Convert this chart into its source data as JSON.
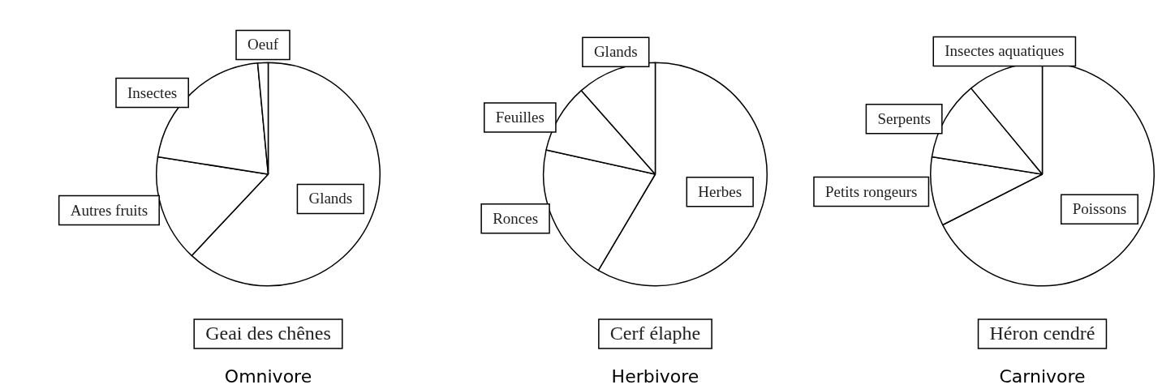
{
  "chart_data": [
    {
      "type": "pie",
      "title": "Geai des chênes",
      "subtitle": "Omnivore",
      "categories": [
        "Glands",
        "Autres fruits",
        "Insectes",
        "Oeuf"
      ],
      "values": [
        62,
        15.5,
        21,
        1.5
      ],
      "colors": [
        "#ffffff",
        "#ffffff",
        "#ffffff",
        "#ffffff"
      ]
    },
    {
      "type": "pie",
      "title": "Cerf élaphe",
      "subtitle": "Herbivore",
      "categories": [
        "Herbes",
        "Ronces",
        "Feuilles",
        "Glands"
      ],
      "values": [
        58.5,
        20,
        10,
        11.5
      ],
      "colors": [
        "#ffffff",
        "#ffffff",
        "#ffffff",
        "#ffffff"
      ]
    },
    {
      "type": "pie",
      "title": "Héron cendré",
      "subtitle": "Carnivore",
      "categories": [
        "Poissons",
        "Petits rongeurs",
        "Serpents",
        "Insectes aquatiques"
      ],
      "values": [
        67.5,
        10,
        11.5,
        11
      ],
      "colors": [
        "#ffffff",
        "#ffffff",
        "#ffffff",
        "#ffffff"
      ]
    }
  ]
}
